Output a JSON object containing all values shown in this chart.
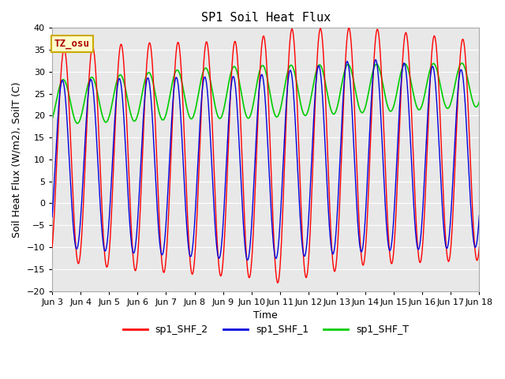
{
  "title": "SP1 Soil Heat Flux",
  "ylabel": "Soil Heat Flux (W/m2), SoilT (C)",
  "xlabel": "Time",
  "xlim_start": 0,
  "xlim_end": 15,
  "ylim": [
    -20,
    40
  ],
  "yticks": [
    -20,
    -15,
    -10,
    -5,
    0,
    5,
    10,
    15,
    20,
    25,
    30,
    35,
    40
  ],
  "xtick_labels": [
    "Jun 3",
    "Jun 4",
    "Jun 5",
    "Jun 6",
    "Jun 7",
    "Jun 8",
    "Jun 9",
    "Jun 10",
    "Jun 11",
    "Jun 12",
    "Jun 13",
    "Jun 14",
    "Jun 15",
    "Jun 16",
    "Jun 17",
    "Jun 18"
  ],
  "bg_color": "#e8e8e8",
  "line_colors": {
    "sp1_SHF_2": "#ff0000",
    "sp1_SHF_1": "#0000dd",
    "sp1_SHF_T": "#00cc00"
  },
  "legend_labels": [
    "sp1_SHF_2",
    "sp1_SHF_1",
    "sp1_SHF_T"
  ],
  "annotation_text": "TZ_osu",
  "annotation_bg": "#ffffcc",
  "annotation_border": "#ccaa00",
  "title_fontsize": 11,
  "axis_label_fontsize": 9,
  "tick_fontsize": 8
}
